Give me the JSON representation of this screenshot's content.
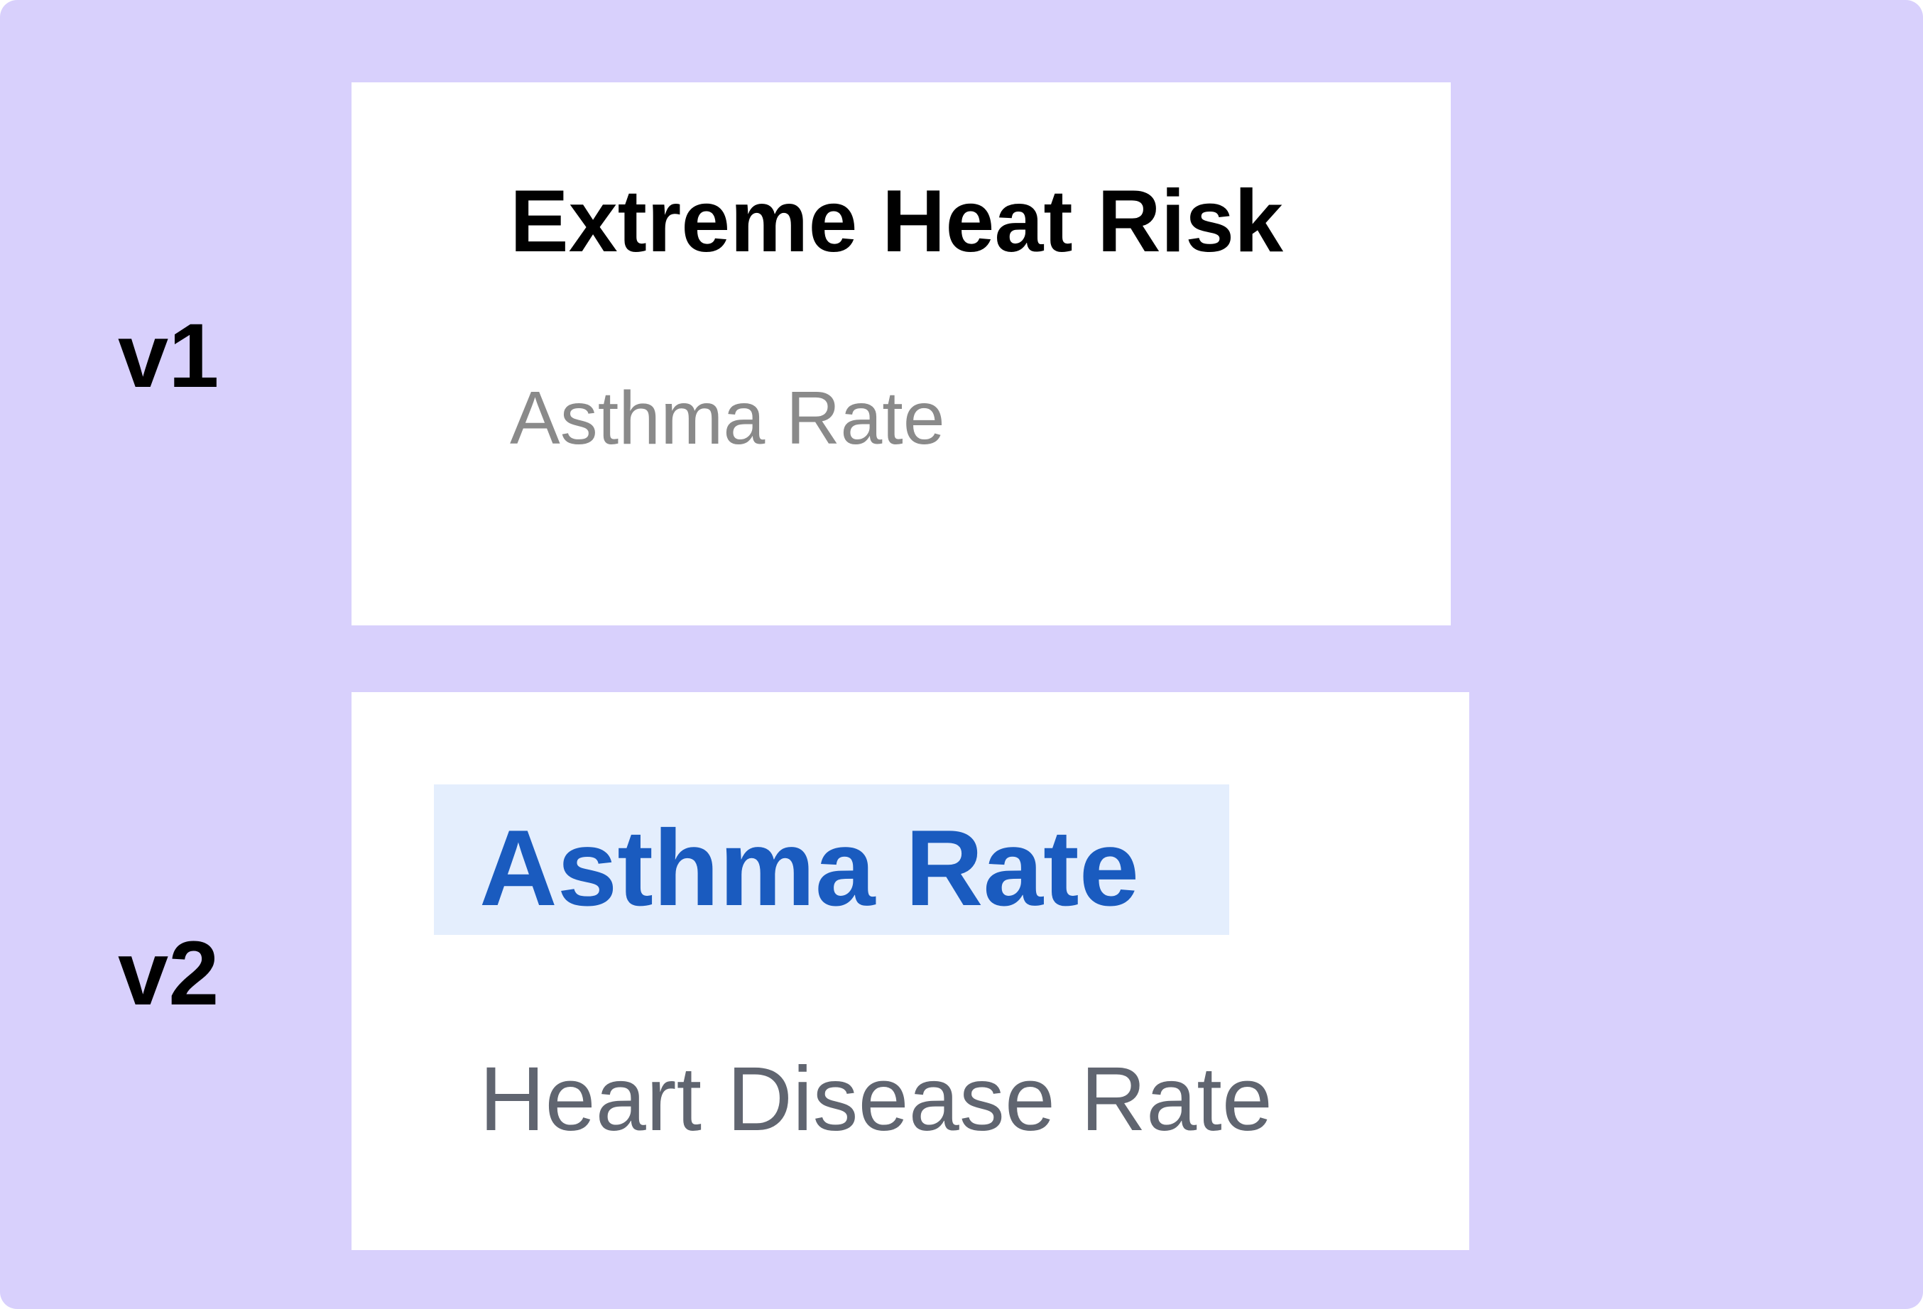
{
  "versions": [
    {
      "label": "v1",
      "items": [
        "Extreme Heat Risk",
        "Asthma Rate"
      ]
    },
    {
      "label": "v2",
      "selected_item": "Asthma Rate",
      "items": [
        "Heart Disease Rate"
      ]
    }
  ],
  "colors": {
    "background": "#d8d0fc",
    "card": "#ffffff",
    "v1_title": "#000000",
    "v1_secondary": "#8a8a8a",
    "v2_selected_text": "#1a5bbf",
    "v2_selected_highlight": "#e4eefd",
    "v2_secondary": "#606570"
  }
}
